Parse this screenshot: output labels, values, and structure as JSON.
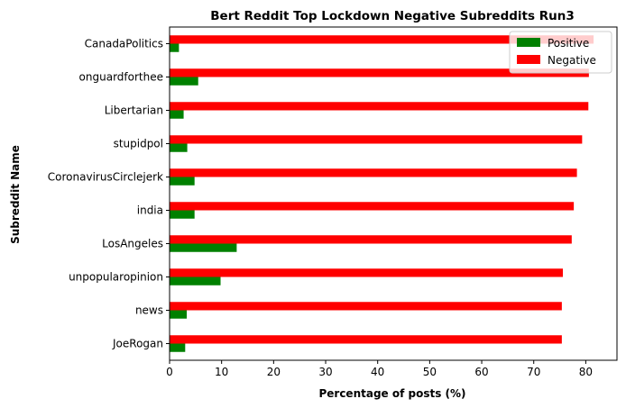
{
  "chart_data": {
    "type": "bar",
    "orientation": "horizontal",
    "title": "Bert Reddit Top Lockdown Negative Subreddits Run3",
    "xlabel": "Percentage of posts (%)",
    "ylabel": "Subreddit Name",
    "xlim": [
      0,
      86
    ],
    "xticks": [
      0,
      10,
      20,
      30,
      40,
      50,
      60,
      70,
      80
    ],
    "grid": false,
    "legend_position": "top-right",
    "categories": [
      "CanadaPolitics",
      "onguardforthee",
      "Libertarian",
      "stupidpol",
      "CoronavirusCirclejerk",
      "india",
      "LosAngeles",
      "unpopularopinion",
      "news",
      "JoeRogan"
    ],
    "series": [
      {
        "name": "Positive",
        "color": "#008000",
        "values": [
          1.8,
          5.5,
          2.7,
          3.4,
          4.8,
          4.8,
          12.9,
          9.8,
          3.3,
          3.0
        ]
      },
      {
        "name": "Negative",
        "color": "#ff0000",
        "values": [
          81.5,
          80.6,
          80.5,
          79.3,
          78.3,
          77.7,
          77.3,
          75.6,
          75.4,
          75.4
        ]
      }
    ]
  }
}
